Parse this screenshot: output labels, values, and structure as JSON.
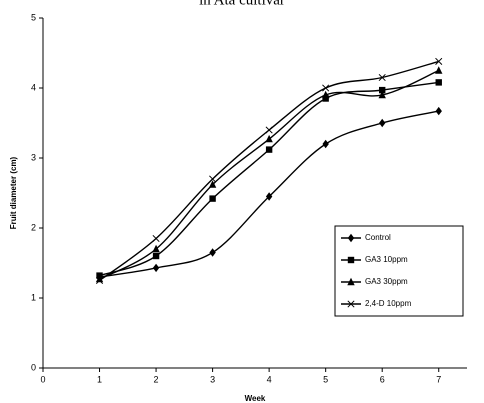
{
  "chart_data": {
    "type": "line",
    "title": "in Ata cultivar",
    "x_label": "Week",
    "y_label": "Fruit diameter (cm)",
    "x": [
      1,
      2,
      3,
      4,
      5,
      6,
      7
    ],
    "series": [
      {
        "name": "Control",
        "color": "#000000",
        "values": [
          1.3,
          1.43,
          1.65,
          2.45,
          3.2,
          3.5,
          3.67
        ]
      },
      {
        "name": "GA3 10ppm",
        "color": "#000000",
        "values": [
          1.32,
          1.6,
          2.42,
          3.12,
          3.85,
          3.97,
          4.08
        ]
      },
      {
        "name": "GA3 30ppm",
        "color": "#000000",
        "values": [
          1.27,
          1.7,
          2.62,
          3.27,
          3.9,
          3.9,
          4.25
        ]
      },
      {
        "name": "2,4-D 10ppm",
        "color": "#000000",
        "values": [
          1.25,
          1.85,
          2.7,
          3.4,
          4.0,
          4.15,
          4.38
        ]
      }
    ],
    "xlim": [
      0,
      7.5
    ],
    "xticks": [
      0,
      1,
      2,
      3,
      4,
      5,
      6,
      7
    ],
    "ylim": [
      0,
      5
    ],
    "yticks": [
      0,
      1,
      2,
      3,
      4,
      5
    ],
    "grid": false,
    "legend": "lower right"
  }
}
